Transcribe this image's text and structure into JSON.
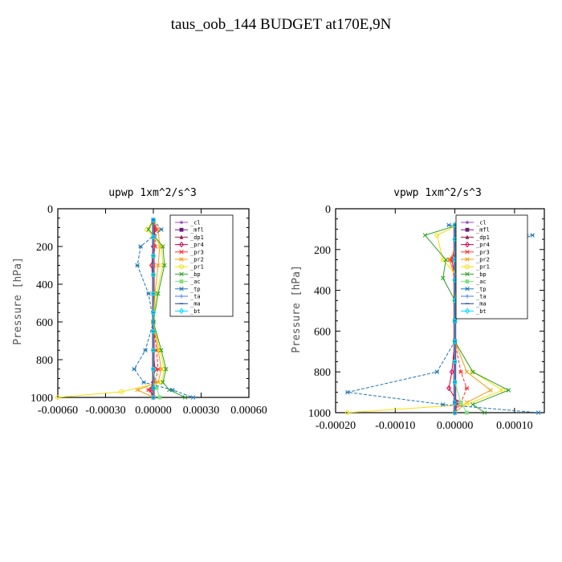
{
  "figure": {
    "title": "taus_oob_144  BUDGET at170E,9N"
  },
  "chart_data": [
    {
      "type": "line",
      "title": "upwp   1xm^2/s^3",
      "ylabel": "Pressure [hPa]",
      "xlabel": "",
      "xlim": [
        -0.0006,
        0.0006
      ],
      "ylim": [
        1000,
        0
      ],
      "xticks": [
        -0.0006,
        -0.0003,
        0,
        0.0003,
        0.0006
      ],
      "xtick_labels": [
        "-0.00060",
        "-0.00030",
        "0.00000",
        "0.00030",
        "0.00060"
      ],
      "yticks": [
        0,
        200,
        400,
        600,
        800,
        1000
      ],
      "ytick_labels": [
        "0",
        "200",
        "400",
        "600",
        "800",
        "1000"
      ],
      "legend_position": "top-right",
      "series": [
        {
          "name": "_cl",
          "color": "#9a4fc0",
          "marker": "dot",
          "x": [
            0,
            0,
            0,
            0,
            0,
            0,
            0,
            0,
            0,
            0,
            0
          ],
          "y": [
            60,
            150,
            250,
            350,
            450,
            550,
            650,
            750,
            850,
            950,
            1000
          ]
        },
        {
          "name": "_mfl",
          "color": "#6a1b7a",
          "marker": "square",
          "x": [
            0,
            0,
            0,
            0,
            0,
            0,
            0,
            0,
            0,
            0,
            0
          ],
          "y": [
            60,
            150,
            250,
            350,
            450,
            550,
            650,
            750,
            850,
            950,
            1000
          ]
        },
        {
          "name": "_dp1",
          "color": "#9b1b4e",
          "marker": "triangle",
          "x": [
            0,
            0,
            0,
            0,
            0,
            0,
            0,
            0,
            0,
            0,
            0
          ],
          "y": [
            60,
            150,
            250,
            350,
            450,
            550,
            650,
            750,
            850,
            950,
            1000
          ]
        },
        {
          "name": "_pr4",
          "color": "#d6004f",
          "marker": "diamond",
          "x": [
            0,
            1e-05,
            0,
            -1e-05,
            0,
            0,
            0,
            1e-05,
            0,
            -2e-05,
            0
          ],
          "y": [
            60,
            110,
            200,
            300,
            450,
            600,
            750,
            850,
            920,
            960,
            1000
          ]
        },
        {
          "name": "_pr3",
          "color": "#ff3030",
          "marker": "star",
          "x": [
            0,
            2e-05,
            1e-05,
            0,
            0,
            0,
            2e-05,
            3e-05,
            1e-05,
            -3e-05,
            0
          ],
          "y": [
            60,
            110,
            200,
            300,
            450,
            600,
            750,
            850,
            920,
            960,
            1000
          ]
        },
        {
          "name": "_pr2",
          "color": "#f39c12",
          "marker": "x",
          "x": [
            0,
            3e-05,
            4e-05,
            3e-05,
            1e-05,
            0,
            3e-05,
            5e-05,
            3e-05,
            -0.0001,
            0
          ],
          "y": [
            60,
            110,
            200,
            300,
            450,
            600,
            750,
            850,
            920,
            960,
            1000
          ]
        },
        {
          "name": "_pr1",
          "color": "#f2e000",
          "marker": "circle",
          "x": [
            0,
            -4e-05,
            5e-05,
            6e-05,
            2e-05,
            0,
            4e-05,
            7e-05,
            5e-05,
            -0.0002,
            -0.0006
          ],
          "y": [
            60,
            110,
            200,
            300,
            450,
            600,
            750,
            850,
            920,
            970,
            1000
          ]
        },
        {
          "name": "_bp",
          "color": "#2ca02c",
          "marker": "x",
          "x": [
            0,
            -3e-05,
            6e-05,
            7e-05,
            3e-05,
            0,
            5e-05,
            8e-05,
            6e-05,
            0.0001,
            0.0002
          ],
          "y": [
            60,
            110,
            200,
            300,
            450,
            600,
            750,
            850,
            920,
            960,
            1000
          ]
        },
        {
          "name": "_ac",
          "color": "#7fe07f",
          "marker": "square",
          "x": [
            0,
            0,
            0,
            0,
            0,
            0,
            0,
            0,
            0,
            2e-05,
            4e-05
          ],
          "y": [
            60,
            150,
            250,
            350,
            450,
            550,
            650,
            750,
            850,
            950,
            1000
          ]
        },
        {
          "name": "_tp",
          "color": "#1f77b4",
          "marker": "star",
          "x": [
            0,
            5e-05,
            -8e-05,
            -0.0001,
            -3e-05,
            0,
            -5e-05,
            -0.00012,
            -6e-05,
            0.00012,
            0.00025
          ],
          "y": [
            60,
            110,
            200,
            300,
            450,
            600,
            750,
            850,
            920,
            960,
            1000
          ]
        },
        {
          "name": "_ta",
          "color": "#3c78ff",
          "marker": "plus",
          "x": [
            0,
            0,
            0,
            0,
            0,
            0,
            0,
            0,
            0,
            0,
            0
          ],
          "y": [
            60,
            150,
            250,
            350,
            450,
            550,
            650,
            750,
            850,
            950,
            1000
          ]
        },
        {
          "name": "_ma",
          "color": "#1b3b8f",
          "marker": "dash",
          "x": [
            0,
            0,
            0,
            0,
            0,
            0,
            0,
            0,
            0,
            0,
            0
          ],
          "y": [
            60,
            150,
            250,
            350,
            450,
            550,
            650,
            750,
            850,
            950,
            1000
          ]
        },
        {
          "name": "_bt",
          "color": "#00d8ff",
          "marker": "diamond",
          "x": [
            0,
            0,
            0,
            0,
            0,
            0,
            0,
            0,
            0,
            0,
            0
          ],
          "y": [
            60,
            150,
            250,
            350,
            450,
            550,
            650,
            750,
            850,
            950,
            1000
          ]
        }
      ]
    },
    {
      "type": "line",
      "title": "vpwp   1xm^2/s^3",
      "ylabel": "Pressure [hPa]",
      "xlabel": "",
      "xlim": [
        -0.0002,
        0.00015
      ],
      "ylim": [
        1000,
        0
      ],
      "xticks": [
        -0.0002,
        -0.0001,
        0,
        0.0001
      ],
      "xtick_labels": [
        "-0.00020",
        "-0.00010",
        "0.00000",
        "0.00010"
      ],
      "yticks": [
        0,
        200,
        400,
        600,
        800,
        1000
      ],
      "ytick_labels": [
        "0",
        "200",
        "400",
        "600",
        "800",
        "1000"
      ],
      "legend_position": "top-right",
      "series": [
        {
          "name": "_cl",
          "color": "#9a4fc0",
          "marker": "dot",
          "x": [
            0,
            0,
            0,
            0,
            0,
            0,
            0,
            0,
            0,
            0,
            0
          ],
          "y": [
            80,
            150,
            250,
            350,
            450,
            550,
            650,
            750,
            850,
            950,
            1000
          ]
        },
        {
          "name": "_mfl",
          "color": "#6a1b7a",
          "marker": "square",
          "x": [
            0,
            0,
            0,
            0,
            0,
            0,
            0,
            0,
            0,
            0,
            0
          ],
          "y": [
            80,
            150,
            250,
            350,
            450,
            550,
            650,
            750,
            850,
            950,
            1000
          ]
        },
        {
          "name": "_dp1",
          "color": "#9b1b4e",
          "marker": "triangle",
          "x": [
            0,
            0,
            0,
            0,
            0,
            0,
            0,
            0,
            0,
            0,
            0
          ],
          "y": [
            80,
            150,
            250,
            350,
            450,
            550,
            650,
            750,
            850,
            950,
            1000
          ]
        },
        {
          "name": "_pr4",
          "color": "#d6004f",
          "marker": "diamond",
          "x": [
            0,
            5e-06,
            -5e-06,
            0,
            0,
            0,
            0,
            -5e-06,
            -1e-05,
            5e-06,
            0
          ],
          "y": [
            80,
            130,
            250,
            350,
            450,
            550,
            650,
            800,
            880,
            950,
            1000
          ]
        },
        {
          "name": "_pr3",
          "color": "#ff3030",
          "marker": "star",
          "x": [
            0,
            1e-05,
            -8e-06,
            0,
            0,
            0,
            0,
            1e-05,
            2e-05,
            1e-05,
            0
          ],
          "y": [
            80,
            130,
            250,
            350,
            450,
            550,
            650,
            800,
            880,
            950,
            1000
          ]
        },
        {
          "name": "_pr2",
          "color": "#f39c12",
          "marker": "x",
          "x": [
            0,
            2e-05,
            -1e-05,
            5e-06,
            0,
            0,
            0,
            2e-05,
            6e-05,
            2e-05,
            0
          ],
          "y": [
            80,
            130,
            250,
            350,
            450,
            550,
            650,
            800,
            890,
            950,
            1000
          ]
        },
        {
          "name": "_pr1",
          "color": "#f2e000",
          "marker": "circle",
          "x": [
            5e-06,
            -3e-05,
            -2e-05,
            1e-05,
            0,
            0,
            0,
            3e-05,
            8e-05,
            2e-05,
            -0.00018
          ],
          "y": [
            80,
            130,
            250,
            350,
            450,
            550,
            650,
            800,
            890,
            960,
            1000
          ]
        },
        {
          "name": "_bp",
          "color": "#2ca02c",
          "marker": "x",
          "x": [
            5e-06,
            -5e-05,
            -1.5e-05,
            -2e-05,
            0,
            0,
            0,
            3e-05,
            9e-05,
            3e-05,
            5e-05
          ],
          "y": [
            80,
            130,
            250,
            340,
            450,
            550,
            650,
            800,
            890,
            960,
            1000
          ]
        },
        {
          "name": "_ac",
          "color": "#7fe07f",
          "marker": "square",
          "x": [
            0,
            0,
            0,
            0,
            0,
            0,
            0,
            0,
            0,
            1e-05,
            2e-05
          ],
          "y": [
            80,
            150,
            250,
            350,
            450,
            550,
            650,
            750,
            850,
            950,
            1000
          ]
        },
        {
          "name": "_tp",
          "color": "#1f77b4",
          "marker": "star",
          "x": [
            -1e-05,
            0.00013,
            2e-05,
            1e-05,
            5e-06,
            0,
            0,
            -3e-05,
            -0.00018,
            -2e-05,
            0.00014
          ],
          "y": [
            80,
            130,
            250,
            350,
            450,
            550,
            650,
            800,
            900,
            960,
            1000
          ]
        },
        {
          "name": "_ta",
          "color": "#3c78ff",
          "marker": "plus",
          "x": [
            0,
            0,
            0,
            0,
            0,
            0,
            0,
            0,
            0,
            0,
            0
          ],
          "y": [
            80,
            150,
            250,
            350,
            450,
            550,
            650,
            750,
            850,
            950,
            1000
          ]
        },
        {
          "name": "_ma",
          "color": "#1b3b8f",
          "marker": "dash",
          "x": [
            0,
            0,
            0,
            0,
            0,
            0,
            0,
            0,
            0,
            0,
            0
          ],
          "y": [
            80,
            150,
            250,
            350,
            450,
            550,
            650,
            750,
            850,
            950,
            1000
          ]
        },
        {
          "name": "_bt",
          "color": "#00d8ff",
          "marker": "diamond",
          "x": [
            0,
            0,
            0,
            0,
            0,
            0,
            0,
            0,
            0,
            0,
            0
          ],
          "y": [
            80,
            150,
            250,
            350,
            450,
            550,
            650,
            750,
            850,
            950,
            1000
          ]
        }
      ]
    }
  ]
}
